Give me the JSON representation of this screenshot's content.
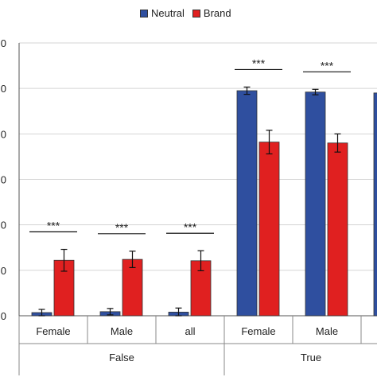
{
  "chart_data": {
    "type": "bar",
    "title": "",
    "xlabel": "",
    "ylabel": "",
    "ylim": [
      0,
      60
    ],
    "y_tick_labels": [
      "0",
      "0",
      "0",
      "0",
      "0",
      "0",
      "0"
    ],
    "grid": true,
    "legend_position": "top",
    "groups": [
      {
        "label": "False",
        "categories": [
          "Female",
          "Male",
          "all"
        ]
      },
      {
        "label": "True",
        "categories": [
          "Female",
          "Male",
          ""
        ]
      }
    ],
    "categories": [
      "Female",
      "Male",
      "all",
      "Female",
      "Male",
      ""
    ],
    "series": [
      {
        "name": "Neutral",
        "color": "#2f4f9f",
        "values": [
          0.7,
          0.9,
          0.8,
          49.5,
          49.2,
          49.0
        ],
        "errors": [
          0.7,
          0.7,
          0.9,
          0.8,
          0.6,
          0.6
        ]
      },
      {
        "name": "Brand",
        "color": "#e02020",
        "values": [
          12.2,
          12.4,
          12.1,
          38.2,
          38.0,
          null
        ],
        "errors": [
          2.4,
          1.8,
          2.2,
          2.6,
          2.0,
          null
        ]
      }
    ],
    "annotations": [
      {
        "text": "***",
        "category_index": 0
      },
      {
        "text": "***",
        "category_index": 1
      },
      {
        "text": "***",
        "category_index": 2
      },
      {
        "text": "***",
        "category_index": 3
      },
      {
        "text": "***",
        "category_index": 4
      }
    ]
  }
}
